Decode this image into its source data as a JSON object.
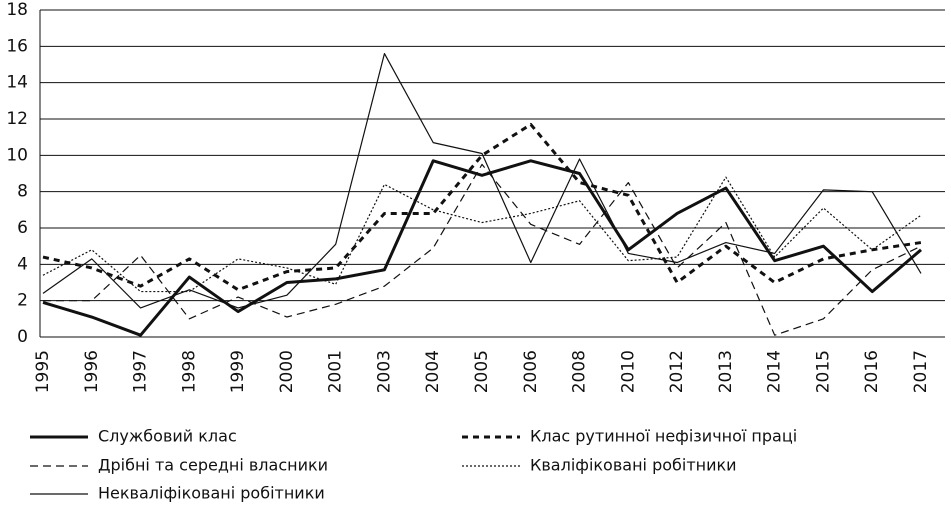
{
  "chart_data": {
    "type": "line",
    "categories": [
      "1995",
      "1996",
      "1997",
      "1998",
      "1999",
      "2000",
      "2001",
      "2003",
      "2004",
      "2005",
      "2006",
      "2008",
      "2010",
      "2012",
      "2013",
      "2014",
      "2015",
      "2016",
      "2017"
    ],
    "series": [
      {
        "name": "Службовий клас",
        "color": "#111111",
        "width": 3,
        "dash": "none",
        "values": [
          1.9,
          1.1,
          0.1,
          3.3,
          1.4,
          3.0,
          3.2,
          3.7,
          9.7,
          8.9,
          9.7,
          9.0,
          4.8,
          6.8,
          8.2,
          4.2,
          5.0,
          2.5,
          4.8
        ]
      },
      {
        "name": "Клас рутинної нефізичної праці",
        "color": "#111111",
        "width": 3,
        "dash": "6 5",
        "values": [
          4.4,
          3.8,
          2.8,
          4.3,
          2.6,
          3.6,
          3.8,
          6.8,
          6.8,
          10.0,
          11.7,
          8.5,
          7.8,
          3.0,
          5.0,
          3.0,
          4.3,
          4.8,
          5.2
        ]
      },
      {
        "name": "Дрібні та середні власники",
        "color": "#111111",
        "width": 1.2,
        "dash": "8 5",
        "values": [
          2.0,
          2.0,
          4.5,
          1.0,
          2.2,
          1.1,
          1.8,
          2.8,
          4.9,
          9.5,
          6.2,
          5.1,
          8.5,
          3.8,
          6.3,
          0.1,
          1.0,
          3.7,
          5.0
        ]
      },
      {
        "name": "Кваліфіковані робітники",
        "color": "#111111",
        "width": 1.2,
        "dash": "2 2",
        "values": [
          3.4,
          4.8,
          2.5,
          2.5,
          4.3,
          3.8,
          2.9,
          8.4,
          7.0,
          6.3,
          6.8,
          7.5,
          4.2,
          4.4,
          8.8,
          4.4,
          7.1,
          4.8,
          6.7
        ]
      },
      {
        "name": "Некваліфіковані робітники",
        "color": "#111111",
        "width": 1.2,
        "dash": "none",
        "values": [
          2.4,
          4.3,
          1.6,
          2.6,
          1.6,
          2.3,
          5.1,
          15.6,
          10.7,
          10.1,
          4.1,
          9.8,
          4.6,
          4.1,
          5.2,
          4.6,
          8.1,
          8.0,
          3.5
        ]
      }
    ],
    "ylim": [
      0,
      18
    ],
    "yticks": [
      0,
      2,
      4,
      6,
      8,
      10,
      12,
      14,
      16,
      18
    ],
    "grid": true
  }
}
